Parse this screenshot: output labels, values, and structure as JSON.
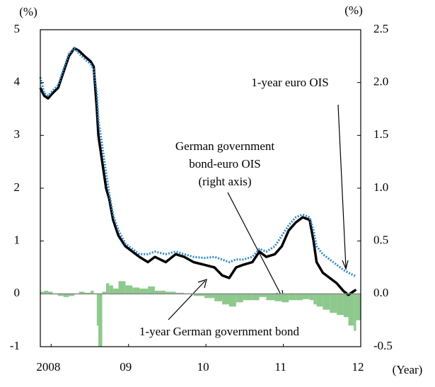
{
  "chart_data": {
    "type": "line",
    "y_label": "(%)",
    "y2_label": "(%)",
    "x_label": "(Year)",
    "xlim": [
      2007.86,
      2012.0
    ],
    "xticks": [
      {
        "value": 2008,
        "label": "2008"
      },
      {
        "value": 2009,
        "label": "09"
      },
      {
        "value": 2010,
        "label": "10"
      },
      {
        "value": 2011,
        "label": "11"
      },
      {
        "value": 2012,
        "label": "12"
      }
    ],
    "ylim": [
      -1,
      5
    ],
    "yticks": [
      -1,
      0,
      1,
      2,
      3,
      4,
      5
    ],
    "y2lim": [
      -0.5,
      2.5
    ],
    "y2ticks": [
      -0.5,
      {
        "value": 0,
        "label": "0.0"
      },
      0.5,
      {
        "value": 1,
        "label": "1.0"
      },
      1.5,
      {
        "value": 2,
        "label": "2.0"
      },
      2.5
    ],
    "x": [
      2007.86,
      2007.91,
      2007.96,
      2008.02,
      2008.09,
      2008.16,
      2008.23,
      2008.3,
      2008.36,
      2008.43,
      2008.51,
      2008.55,
      2008.59,
      2008.61,
      2008.66,
      2008.71,
      2008.75,
      2008.8,
      2008.87,
      2008.96,
      2009.05,
      2009.14,
      2009.25,
      2009.34,
      2009.48,
      2009.61,
      2009.72,
      2009.84,
      2009.98,
      2010.11,
      2010.21,
      2010.3,
      2010.39,
      2010.48,
      2010.6,
      2010.69,
      2010.78,
      2010.89,
      2010.98,
      2011.07,
      2011.16,
      2011.25,
      2011.34,
      2011.39,
      2011.43,
      2011.51,
      2011.6,
      2011.69,
      2011.78,
      2011.84,
      2011.91,
      2011.94
    ],
    "series": [
      {
        "name": "German government bond-euro OIS (right axis)",
        "kind": "bar",
        "axis": "y2",
        "color": "#8dc98d",
        "values": [
          0.02,
          0.03,
          0.02,
          0.0,
          -0.02,
          -0.03,
          -0.02,
          0.0,
          0.02,
          0.01,
          0.03,
          0.0,
          -0.3,
          -0.5,
          0.02,
          0.1,
          0.08,
          0.05,
          0.12,
          0.08,
          0.06,
          0.05,
          0.07,
          0.03,
          0.02,
          0.01,
          0.0,
          -0.02,
          -0.04,
          -0.07,
          -0.1,
          -0.12,
          -0.08,
          -0.06,
          -0.06,
          -0.03,
          -0.06,
          -0.07,
          -0.08,
          -0.06,
          -0.06,
          -0.05,
          -0.06,
          -0.1,
          -0.12,
          -0.15,
          -0.18,
          -0.2,
          -0.22,
          -0.3,
          -0.35,
          -0.25
        ]
      },
      {
        "name": "1-year German government bond",
        "kind": "line",
        "color": "#000000",
        "values": [
          3.9,
          3.75,
          3.7,
          3.8,
          3.9,
          4.2,
          4.5,
          4.65,
          4.6,
          4.5,
          4.4,
          4.3,
          3.5,
          3.0,
          2.5,
          2.0,
          1.8,
          1.4,
          1.1,
          0.9,
          0.8,
          0.7,
          0.6,
          0.7,
          0.6,
          0.75,
          0.7,
          0.6,
          0.55,
          0.5,
          0.35,
          0.3,
          0.5,
          0.55,
          0.6,
          0.8,
          0.7,
          0.75,
          0.9,
          1.2,
          1.35,
          1.45,
          1.4,
          1.0,
          0.6,
          0.4,
          0.3,
          0.2,
          0.05,
          -0.02,
          0.05,
          0.08
        ]
      },
      {
        "name": "1-year euro OIS",
        "kind": "dotted",
        "color": "#2f86c8",
        "values": [
          4.1,
          3.8,
          3.75,
          3.85,
          3.95,
          4.25,
          4.55,
          4.65,
          4.55,
          4.45,
          4.35,
          4.25,
          3.8,
          3.3,
          2.8,
          2.3,
          1.9,
          1.5,
          1.2,
          0.95,
          0.85,
          0.75,
          0.75,
          0.8,
          0.75,
          0.8,
          0.75,
          0.7,
          0.68,
          0.7,
          0.65,
          0.6,
          0.65,
          0.65,
          0.7,
          0.85,
          0.8,
          0.9,
          1.1,
          1.3,
          1.45,
          1.5,
          1.45,
          1.2,
          0.9,
          0.75,
          0.65,
          0.55,
          0.45,
          0.4,
          0.35,
          0.33
        ]
      }
    ]
  }
}
